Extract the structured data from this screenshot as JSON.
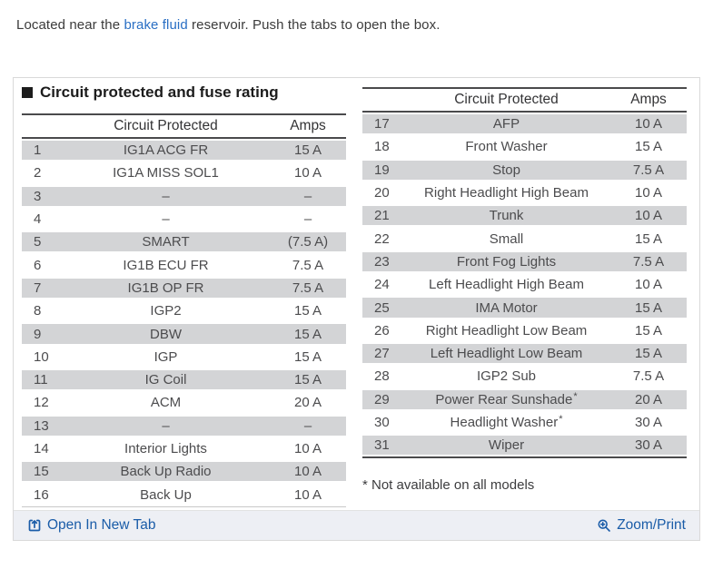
{
  "intro": {
    "prefix": "Located near the ",
    "link": "brake fluid",
    "suffix": " reservoir. Push the tabs to open the box."
  },
  "panel": {
    "title": "Circuit protected and fuse rating",
    "columns": {
      "circuit": "Circuit Protected",
      "amps": "Amps"
    },
    "tables": [
      {
        "id": "left",
        "rows": [
          {
            "n": 1,
            "name": "IG1A ACG FR",
            "amps": "15 A"
          },
          {
            "n": 2,
            "name": "IG1A MISS SOL1",
            "amps": "10 A"
          },
          {
            "n": 3,
            "name": "–",
            "amps": "–"
          },
          {
            "n": 4,
            "name": "–",
            "amps": "–"
          },
          {
            "n": 5,
            "name": "SMART",
            "amps": "(7.5 A)"
          },
          {
            "n": 6,
            "name": "IG1B ECU FR",
            "amps": "7.5 A"
          },
          {
            "n": 7,
            "name": "IG1B OP FR",
            "amps": "7.5 A"
          },
          {
            "n": 8,
            "name": "IGP2",
            "amps": "15 A"
          },
          {
            "n": 9,
            "name": "DBW",
            "amps": "15 A"
          },
          {
            "n": 10,
            "name": "IGP",
            "amps": "15 A"
          },
          {
            "n": 11,
            "name": "IG Coil",
            "amps": "15 A"
          },
          {
            "n": 12,
            "name": "ACM",
            "amps": "20 A"
          },
          {
            "n": 13,
            "name": "–",
            "amps": "–"
          },
          {
            "n": 14,
            "name": "Interior Lights",
            "amps": "10 A"
          },
          {
            "n": 15,
            "name": "Back Up Radio",
            "amps": "10 A"
          },
          {
            "n": 16,
            "name": "Back Up",
            "amps": "10 A"
          }
        ]
      },
      {
        "id": "right",
        "rows": [
          {
            "n": 17,
            "name": "AFP",
            "amps": "10 A"
          },
          {
            "n": 18,
            "name": "Front Washer",
            "amps": "15 A"
          },
          {
            "n": 19,
            "name": "Stop",
            "amps": "7.5 A"
          },
          {
            "n": 20,
            "name": "Right Headlight High Beam",
            "amps": "10 A"
          },
          {
            "n": 21,
            "name": "Trunk",
            "amps": "10 A"
          },
          {
            "n": 22,
            "name": "Small",
            "amps": "15 A"
          },
          {
            "n": 23,
            "name": "Front Fog Lights",
            "amps": "7.5 A"
          },
          {
            "n": 24,
            "name": "Left Headlight High Beam",
            "amps": "10 A"
          },
          {
            "n": 25,
            "name": "IMA Motor",
            "amps": "15 A"
          },
          {
            "n": 26,
            "name": "Right Headlight Low Beam",
            "amps": "15 A"
          },
          {
            "n": 27,
            "name": "Left Headlight Low Beam",
            "amps": "15 A"
          },
          {
            "n": 28,
            "name": "IGP2 Sub",
            "amps": "7.5 A"
          },
          {
            "n": 29,
            "name": "Power Rear Sunshade*",
            "amps": "20 A"
          },
          {
            "n": 30,
            "name": "Headlight Washer*",
            "amps": "30 A"
          },
          {
            "n": 31,
            "name": "Wiper",
            "amps": "30 A"
          }
        ]
      }
    ],
    "footnote": "* Not available on all models"
  },
  "footer": {
    "open_in_new_tab": "Open In New Tab",
    "zoom_print": "Zoom/Print"
  },
  "colors": {
    "link_blue": "#2a6fc4",
    "footer_link_blue": "#1a5ca8",
    "shaded_row": "#d3d4d6",
    "table_rule": "#4a4a4c",
    "footer_bg": "#edeff4"
  }
}
